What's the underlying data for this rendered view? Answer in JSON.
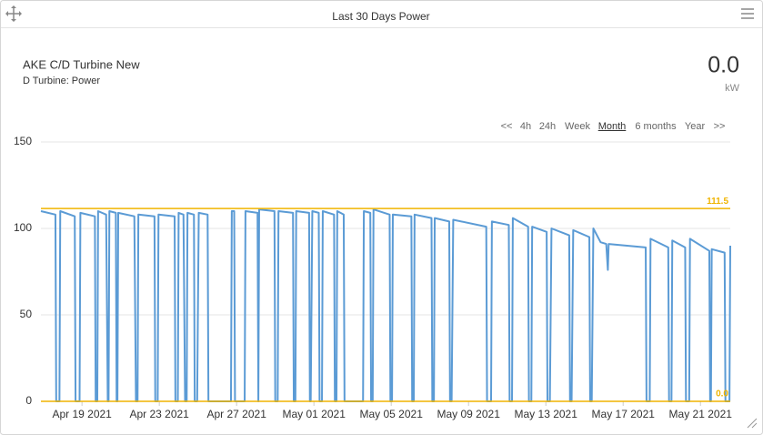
{
  "panel": {
    "title": "Last 30 Days Power"
  },
  "header": {
    "name": "AKE C/D Turbine New",
    "subtitle": "D Turbine: Power",
    "value": "0.0",
    "unit": "kW"
  },
  "range_buttons": [
    "<<",
    "4h",
    "24h",
    "Week",
    "Month",
    "6 months",
    "Year",
    ">>"
  ],
  "chart_data": {
    "type": "line",
    "x": [
      "2021-04-16 21:00",
      "2021-04-17 15:00",
      "2021-04-17 16:00",
      "2021-04-17 20:00",
      "2021-04-17 21:00",
      "2021-04-18 15:00",
      "2021-04-18 16:00",
      "2021-04-18 21:00",
      "2021-04-18 22:00",
      "2021-04-19 16:00",
      "2021-04-19 17:00",
      "2021-04-19 19:00",
      "2021-04-19 20:00",
      "2021-04-20 06:00",
      "2021-04-20 08:00",
      "2021-04-20 09:00",
      "2021-04-20 10:00",
      "2021-04-20 18:00",
      "2021-04-20 19:00",
      "2021-04-20 20:00",
      "2021-04-20 21:00",
      "2021-04-21 17:00",
      "2021-04-21 19:00",
      "2021-04-21 21:00",
      "2021-04-21 22:00",
      "2021-04-22 18:00",
      "2021-04-22 19:00",
      "2021-04-22 22:00",
      "2021-04-22 23:00",
      "2021-04-23 19:00",
      "2021-04-23 20:00",
      "2021-04-23 23:00",
      "2021-04-24 00:00",
      "2021-04-24 06:00",
      "2021-04-24 08:00",
      "2021-04-24 10:00",
      "2021-04-24 11:00",
      "2021-04-24 19:00",
      "2021-04-24 20:00",
      "2021-04-24 23:00",
      "2021-04-25 01:00",
      "2021-04-25 12:00",
      "2021-04-25 13:00",
      "2021-04-26 17:00",
      "2021-04-26 18:00",
      "2021-04-26 21:00",
      "2021-04-26 22:00",
      "2021-04-27 10:00",
      "2021-04-27 11:00",
      "2021-04-28 02:00",
      "2021-04-28 03:00",
      "2021-04-28 04:00",
      "2021-04-28 23:00",
      "2021-04-29 00:00",
      "2021-04-29 03:00",
      "2021-04-29 04:00",
      "2021-04-29 22:00",
      "2021-04-29 23:00",
      "2021-04-30 01:00",
      "2021-04-30 02:00",
      "2021-04-30 18:00",
      "2021-04-30 19:00",
      "2021-04-30 20:00",
      "2021-04-30 22:00",
      "2021-05-01 06:00",
      "2021-05-01 07:00",
      "2021-05-01 10:00",
      "2021-05-01 11:00",
      "2021-05-02 01:00",
      "2021-05-02 02:00",
      "2021-05-02 04:00",
      "2021-05-02 05:00",
      "2021-05-02 13:00",
      "2021-05-02 14:00",
      "2021-05-03 13:00",
      "2021-05-03 14:00",
      "2021-05-03 22:00",
      "2021-05-03 23:00",
      "2021-05-04 01:00",
      "2021-05-04 02:00",
      "2021-05-04 22:00",
      "2021-05-04 23:00",
      "2021-05-05 01:00",
      "2021-05-05 02:00",
      "2021-05-06 01:00",
      "2021-05-06 02:00",
      "2021-05-06 04:00",
      "2021-05-06 05:00",
      "2021-05-07 02:00",
      "2021-05-07 03:00",
      "2021-05-07 05:00",
      "2021-05-07 06:00",
      "2021-05-08 00:00",
      "2021-05-08 01:00",
      "2021-05-08 03:00",
      "2021-05-08 05:00",
      "2021-05-09 22:00",
      "2021-05-09 23:00",
      "2021-05-10 04:00",
      "2021-05-10 05:00",
      "2021-05-11 02:00",
      "2021-05-11 03:00",
      "2021-05-11 06:00",
      "2021-05-11 07:00",
      "2021-05-12 02:00",
      "2021-05-12 03:00",
      "2021-05-12 06:00",
      "2021-05-12 07:00",
      "2021-05-13 01:00",
      "2021-05-13 02:00",
      "2021-05-13 05:00",
      "2021-05-13 07:00",
      "2021-05-14 05:00",
      "2021-05-14 06:00",
      "2021-05-14 08:00",
      "2021-05-14 10:00",
      "2021-05-15 06:00",
      "2021-05-15 07:00",
      "2021-05-15 09:00",
      "2021-05-15 11:00",
      "2021-05-15 20:00",
      "2021-05-16 03:00",
      "2021-05-16 05:00",
      "2021-05-16 06:00",
      "2021-05-17 05:00",
      "2021-05-18 04:00",
      "2021-05-18 05:00",
      "2021-05-18 09:00",
      "2021-05-18 10:00",
      "2021-05-19 08:00",
      "2021-05-19 09:00",
      "2021-05-19 12:00",
      "2021-05-19 13:00",
      "2021-05-20 05:00",
      "2021-05-20 06:00",
      "2021-05-20 10:00",
      "2021-05-20 11:00",
      "2021-05-21 11:00",
      "2021-05-21 12:00",
      "2021-05-21 13:00",
      "2021-05-21 14:00",
      "2021-05-22 06:00",
      "2021-05-22 07:00",
      "2021-05-22 12:00",
      "2021-05-22 13:00"
    ],
    "series": [
      {
        "name": "Power",
        "color": "#5b9bd5",
        "values": [
          110,
          108,
          0,
          0,
          110,
          107,
          0,
          0,
          109,
          107,
          0,
          0,
          110,
          108,
          0,
          0,
          110,
          109,
          0,
          0,
          109,
          107,
          0,
          0,
          108,
          107,
          0,
          0,
          108,
          107,
          0,
          0,
          109,
          108,
          0,
          0,
          109,
          108,
          0,
          0,
          109,
          108,
          0,
          0,
          110,
          110,
          0,
          0,
          110,
          109,
          0,
          111,
          110,
          0,
          0,
          110,
          109,
          0,
          0,
          110,
          109,
          0,
          0,
          110,
          109,
          0,
          0,
          110,
          108,
          0,
          0,
          110,
          108,
          0,
          0,
          110,
          109,
          0,
          0,
          111,
          108,
          0,
          0,
          108,
          107,
          0,
          0,
          108,
          106,
          0,
          0,
          106,
          104,
          0,
          0,
          105,
          101,
          0,
          0,
          104,
          102,
          0,
          0,
          106,
          101,
          0,
          0,
          101,
          98,
          0,
          0,
          100,
          96,
          0,
          0,
          99,
          95,
          0,
          0,
          100,
          92,
          91,
          76,
          91,
          90,
          89,
          0,
          0,
          94,
          89,
          0,
          0,
          93,
          89,
          0,
          0,
          94,
          87,
          0,
          0,
          88,
          86,
          0,
          0,
          90
        ]
      }
    ],
    "thresholds": [
      {
        "value": 111.5,
        "label": "111.5",
        "color": "#f0b400"
      },
      {
        "value": 0,
        "label": "0.0",
        "color": "#f0b400"
      }
    ],
    "xlim": [
      "2021-04-16 21:00",
      "2021-05-22 13:00"
    ],
    "xticks": [
      {
        "value": "2021-04-19",
        "label": "Apr 19 2021"
      },
      {
        "value": "2021-04-23",
        "label": "Apr 23 2021"
      },
      {
        "value": "2021-04-27",
        "label": "Apr 27 2021"
      },
      {
        "value": "2021-05-01",
        "label": "May 01 2021"
      },
      {
        "value": "2021-05-05",
        "label": "May 05 2021"
      },
      {
        "value": "2021-05-09",
        "label": "May 09 2021"
      },
      {
        "value": "2021-05-13",
        "label": "May 13 2021"
      },
      {
        "value": "2021-05-17",
        "label": "May 17 2021"
      },
      {
        "value": "2021-05-21",
        "label": "May 21 2021"
      }
    ],
    "ylim": [
      0,
      150
    ],
    "yticks": [
      0,
      50,
      100,
      150
    ],
    "grid": true
  }
}
